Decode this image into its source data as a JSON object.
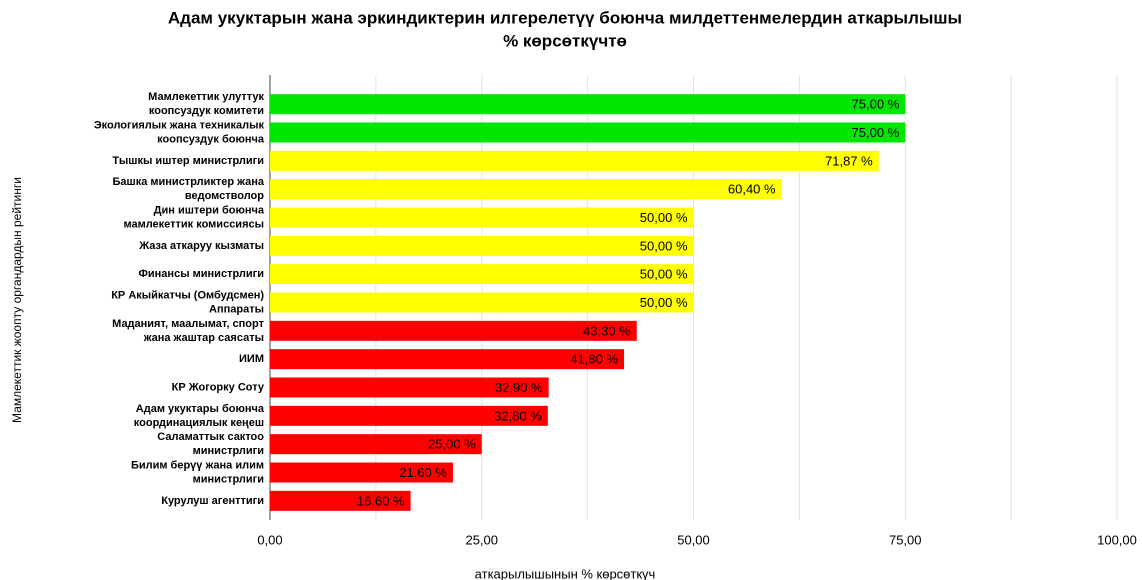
{
  "chart_data": {
    "type": "bar",
    "orientation": "horizontal",
    "title": "Адам укуктарын жана эркиндиктерин илгерелетүү боюнча милдеттенмелердин аткарылышы\n% көрсөткүчтө",
    "x_label": "аткарылышынын % көрсөткүч",
    "y_label": "Мамлекеттик жоопту органдардын рейтинги",
    "categories": [
      "Мамлекеттик улуттук\nкоопсуздук комитети",
      "Экологиялык жана техникалык\nкоопсуздук боюнча",
      "Тышкы иштер министрлиги",
      "Башка министрликтер жана\nведомстволор",
      "Дин иштери боюнча\nмамлекеттик комиссиясы",
      "Жаза аткаруу кызматы",
      "Финансы министрлиги",
      "КР Акыйкатчы (Омбудсмен)\nАппараты",
      "Маданият, маалымат, спорт\nжана жаштар саясаты",
      "ИИМ",
      "КР Жогорку Соту",
      "Адам укуктары боюнча\nкоординациялык кеңеш",
      "Саламаттык сактоо\nминистрлиги",
      "Билим берүү жана илим\nминистрлиги",
      "Курулуш агенттиги"
    ],
    "values": [
      75,
      75,
      71.87,
      60.4,
      50,
      50,
      50,
      50,
      43.3,
      41.8,
      32.9,
      32.8,
      25,
      21.6,
      16.6
    ],
    "value_labels": [
      "75,00 %",
      "75,00 %",
      "71,87 %",
      "60,40 %",
      "50,00 %",
      "50,00 %",
      "50,00 %",
      "50,00 %",
      "43,30 %",
      "41,80 %",
      "32,90 %",
      "32,80 %",
      "25,00 %",
      "21,60 %",
      "16,60 %"
    ],
    "colors": [
      "#00e600",
      "#00e600",
      "#ffff00",
      "#ffff00",
      "#ffff00",
      "#ffff00",
      "#ffff00",
      "#ffff00",
      "#ff0000",
      "#ff0000",
      "#ff0000",
      "#ff0000",
      "#ff0000",
      "#ff0000",
      "#ff0000"
    ],
    "xlim": [
      0,
      100
    ],
    "xticks": [
      {
        "value": 0,
        "label": "0,00"
      },
      {
        "value": 25,
        "label": "25,00"
      },
      {
        "value": 50,
        "label": "50,00"
      },
      {
        "value": 75,
        "label": "75,00"
      },
      {
        "value": 100,
        "label": "100,00"
      }
    ],
    "minor_xticks": [
      12.5,
      37.5,
      62.5,
      87.5
    ],
    "grid": true
  }
}
